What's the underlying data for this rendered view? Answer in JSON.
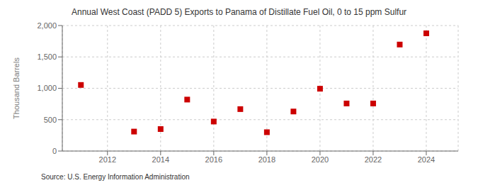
{
  "chart_data": {
    "type": "scatter",
    "title": "Annual West Coast (PADD 5) Exports to Panama of Distillate Fuel Oil, 0 to 15 ppm Sulfur",
    "ylabel": "Thousand Barrels",
    "annotations": [
      "Source: U.S. Energy Information Administration"
    ],
    "x": [
      2011,
      2013,
      2014,
      2015,
      2016,
      2017,
      2018,
      2019,
      2020,
      2021,
      2022,
      2023,
      2024
    ],
    "values": [
      1053,
      310,
      350,
      820,
      470,
      668,
      300,
      630,
      993,
      758,
      758,
      1697,
      1876
    ],
    "color": "#cc0000",
    "marker": "square",
    "xlim": [
      2010.3,
      2025.2
    ],
    "xticks": [
      2012,
      2014,
      2016,
      2018,
      2020,
      2022,
      2024
    ],
    "ylim": [
      0,
      2000
    ],
    "yticks": [
      0,
      500,
      {
        "value": 1000,
        "label": "1,000"
      },
      {
        "value": 1500,
        "label": "1,500"
      },
      {
        "value": 2000,
        "label": "2,000"
      }
    ],
    "grid": true
  }
}
